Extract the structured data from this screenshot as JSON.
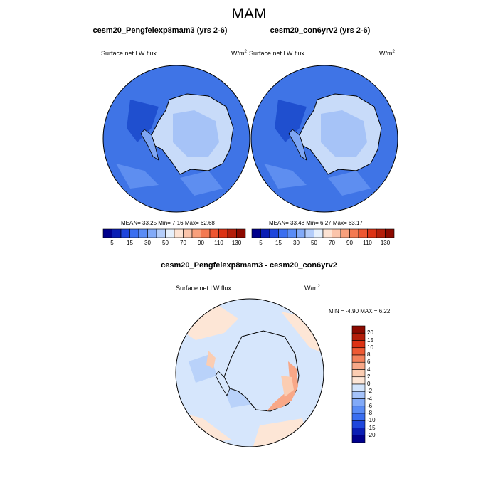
{
  "figure": {
    "title": "MAM",
    "field": "Surface net LW flux",
    "units_base": "W/m",
    "units_exp": "2"
  },
  "panels": [
    {
      "title": "cesm20_Pengfeiexp8mam3 (yrs 2-6)",
      "stats": "MEAN=  33.25  Min=   7.16  Max=  62.68"
    },
    {
      "title": "cesm20_con6yrv2 (yrs 2-6)",
      "stats": "MEAN=  33.48  Min=   6.27  Max=  63.17"
    }
  ],
  "diff": {
    "title": "cesm20_Pengfeiexp8mam3 - cesm20_con6yrv2",
    "stats": "MIN =  -4.90 MAX =   6.22"
  },
  "colorbar_main": {
    "colors": [
      "#00008c",
      "#0a1eb4",
      "#1e46dc",
      "#3a6ef0",
      "#5a8cf5",
      "#82aaf8",
      "#b4cdfa",
      "#e6f0fc",
      "#fde3d3",
      "#fbc4aa",
      "#f8a07c",
      "#f47a52",
      "#ee5630",
      "#dc3214",
      "#b41e0a",
      "#8c0a00"
    ],
    "labels": [
      "5",
      "15",
      "30",
      "50",
      "70",
      "90",
      "110",
      "130"
    ]
  },
  "colorbar_diff": {
    "colors": [
      "#00008c",
      "#0a1eb4",
      "#1e46dc",
      "#3a6ef0",
      "#5a8cf5",
      "#82aaf8",
      "#a5c3fa",
      "#d2e4fc",
      "#fde6d6",
      "#fbcdb2",
      "#f8a888",
      "#f4825c",
      "#ee5a34",
      "#dc3214",
      "#b41e0a",
      "#8c0a00"
    ],
    "labels": [
      "20",
      "15",
      "10",
      "8",
      "6",
      "4",
      "2",
      "0",
      "-2",
      "-4",
      "-6",
      "-8",
      "-10",
      "-15",
      "-20"
    ]
  }
}
